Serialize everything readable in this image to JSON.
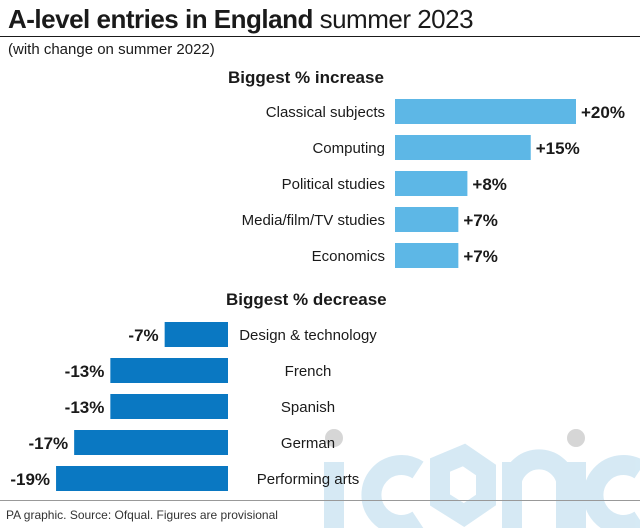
{
  "title_bold": "A-level entries in England",
  "title_light": " summer 2023",
  "subtitle": "(with change on summer 2022)",
  "footer": "PA graphic. Source: Ofqual. Figures are provisional",
  "watermark_text": "iconic",
  "colors": {
    "increase": "#5db7e6",
    "decrease": "#0a78c2",
    "text": "#1a1a1a"
  },
  "chart_data": [
    {
      "type": "bar",
      "title": "Biggest % increase",
      "categories": [
        "Classical subjects",
        "Computing",
        "Political studies",
        "Media/film/TV studies",
        "Economics"
      ],
      "values": [
        20,
        15,
        8,
        7,
        7
      ],
      "labels": [
        "+20%",
        "+15%",
        "+8%",
        "+7%",
        "+7%"
      ],
      "orientation": "horizontal"
    },
    {
      "type": "bar",
      "title": "Biggest % decrease",
      "categories": [
        "Design & technology",
        "French",
        "Spanish",
        "German",
        "Performing arts"
      ],
      "values": [
        -7,
        -13,
        -13,
        -17,
        -19
      ],
      "labels": [
        "-7%",
        "-13%",
        "-13%",
        "-17%",
        "-19%"
      ],
      "orientation": "horizontal"
    }
  ]
}
